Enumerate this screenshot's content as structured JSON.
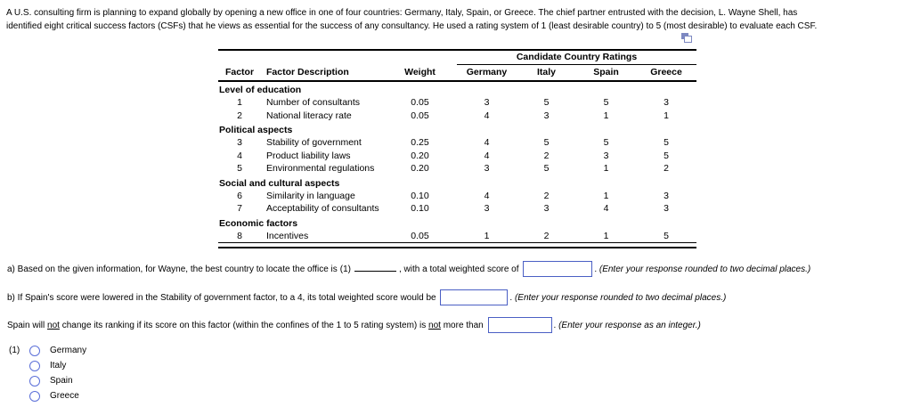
{
  "colors": {
    "input_border": "#4a5fc4",
    "radio_border": "#5b6fd8",
    "copy_icon": "#7d88c1"
  },
  "intro": {
    "line1": "A U.S. consulting firm is planning to expand globally by opening a new office in one of four countries: Germany, Italy, Spain, or Greece. The chief partner entrusted with the decision, L. Wayne Shell, has",
    "line2": "identified eight critical success factors (CSFs) that he views as essential for the success of any consultancy. He used a rating system of 1 (least desirable country) to 5 (most desirable) to evaluate each CSF."
  },
  "table": {
    "span_header": "Candidate Country Ratings",
    "columns": [
      "Factor",
      "Factor Description",
      "Weight",
      "Germany",
      "Italy",
      "Spain",
      "Greece"
    ],
    "groups": [
      {
        "label": "Level of education",
        "rows": [
          {
            "factor": "1",
            "description": "Number of consultants",
            "weight": "0.05",
            "ratings": [
              "3",
              "5",
              "5",
              "3"
            ]
          },
          {
            "factor": "2",
            "description": "National literacy rate",
            "weight": "0.05",
            "ratings": [
              "4",
              "3",
              "1",
              "1"
            ]
          }
        ]
      },
      {
        "label": "Political aspects",
        "rows": [
          {
            "factor": "3",
            "description": "Stability of government",
            "weight": "0.25",
            "ratings": [
              "4",
              "5",
              "5",
              "5"
            ]
          },
          {
            "factor": "4",
            "description": "Product liability laws",
            "weight": "0.20",
            "ratings": [
              "4",
              "2",
              "3",
              "5"
            ]
          },
          {
            "factor": "5",
            "description": "Environmental regulations",
            "weight": "0.20",
            "ratings": [
              "3",
              "5",
              "1",
              "2"
            ]
          }
        ]
      },
      {
        "label": "Social and cultural aspects",
        "rows": [
          {
            "factor": "6",
            "description": "Similarity in language",
            "weight": "0.10",
            "ratings": [
              "4",
              "2",
              "1",
              "3"
            ]
          },
          {
            "factor": "7",
            "description": "Acceptability of consultants",
            "weight": "0.10",
            "ratings": [
              "3",
              "3",
              "4",
              "3"
            ]
          }
        ]
      },
      {
        "label": "Economic factors",
        "rows": [
          {
            "factor": "8",
            "description": "Incentives",
            "weight": "0.05",
            "ratings": [
              "1",
              "2",
              "1",
              "5"
            ]
          }
        ]
      }
    ]
  },
  "question_a": {
    "t1": "a) Based on the given information, for Wayne, the best country to locate the office is",
    "ref": "(1)",
    "t2": ", with a total weighted score of",
    "period": ".",
    "hint": "(Enter your response rounded to two decimal places.)",
    "score_value": ""
  },
  "question_b": {
    "t1": "b) If Spain's score were lowered in the Stability of government factor, to a 4, its total weighted score would be ",
    "period": ".",
    "hint": "(Enter your response rounded to two decimal places.)",
    "score_value": ""
  },
  "question_c": {
    "t1": "Spain will ",
    "u1": "not",
    "t2": " change its ranking if its score on this factor (within the confines of the 1 to 5 rating system) is ",
    "u2": "not",
    "t3": " more than ",
    "period": ".",
    "hint": "(Enter your response as an integer.)",
    "value": ""
  },
  "choices": {
    "ref": "(1)",
    "items": [
      "Germany",
      "Italy",
      "Spain",
      "Greece"
    ]
  }
}
